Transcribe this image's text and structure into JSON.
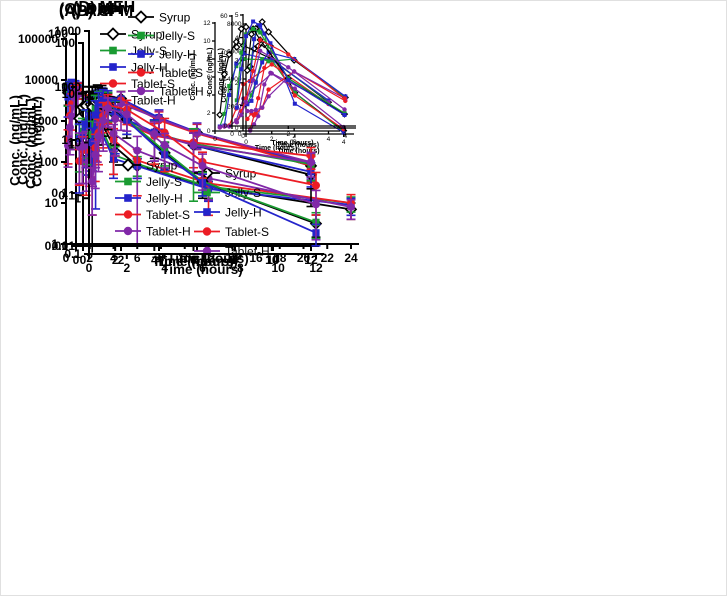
{
  "figure": {
    "background": "#ffffff",
    "border_color": "#e0e0e0"
  },
  "legend_series": [
    {
      "label": "Syrup",
      "color": "#000000",
      "marker": "diamond-open"
    },
    {
      "label": "Jelly-S",
      "color": "#1A9B32",
      "marker": "square"
    },
    {
      "label": "Jelly-H",
      "color": "#2424CB",
      "marker": "square"
    },
    {
      "label": "Tablet-S",
      "color": "#EC1C24",
      "marker": "circle"
    },
    {
      "label": "Tablet-H",
      "color": "#8128A8",
      "marker": "circle"
    }
  ],
  "chart_data": [
    {
      "id": "A",
      "type": "line",
      "title": "(A) AAP",
      "xlabel": "Time (hours)",
      "ylabel": "Conc. (ng/mL)",
      "yscale": "log",
      "ylim": [
        1,
        100000
      ],
      "yticks": [
        "1",
        "10",
        "100",
        "1000",
        "10000",
        "100000"
      ],
      "xlim": [
        0,
        24
      ],
      "xticks": [
        0,
        2,
        4,
        6,
        8,
        10,
        12,
        14,
        16,
        18,
        20,
        22,
        24
      ],
      "x": [
        0.17,
        0.33,
        0.5,
        0.75,
        1,
        2,
        4,
        6,
        12,
        24
      ],
      "series": [
        {
          "name": "Syrup",
          "values": [
            4900,
            6200,
            6400,
            6500,
            6400,
            3000,
            250,
            80,
            25,
            7
          ],
          "errors": [
            2500,
            2000,
            2000,
            2000,
            2000,
            1200,
            150,
            40,
            12,
            3
          ]
        },
        {
          "name": "Jelly-S",
          "values": [
            4700,
            6900,
            7600,
            7300,
            5500,
            3000,
            150,
            90,
            25,
            10
          ],
          "errors": [
            2400,
            2200,
            2300,
            2300,
            2000,
            1300,
            100,
            45,
            12,
            4
          ]
        },
        {
          "name": "Jelly-H",
          "values": [
            3850,
            6900,
            7900,
            7300,
            6600,
            2200,
            120,
            80,
            22,
            9
          ],
          "errors": [
            2600,
            2300,
            2400,
            2300,
            2100,
            1100,
            80,
            40,
            11,
            4
          ]
        },
        {
          "name": "Tablet-S",
          "values": [
            350,
            1350,
            2600,
            4800,
            5900,
            2800,
            350,
            110,
            30,
            10
          ],
          "errors": [
            260,
            1100,
            2000,
            2400,
            2500,
            1500,
            300,
            95,
            25,
            6
          ]
        },
        {
          "name": "Tablet-H",
          "values": [
            250,
            700,
            1300,
            3600,
            4450,
            3300,
            500,
            190,
            40,
            8
          ],
          "errors": [
            175,
            550,
            1100,
            2200,
            2300,
            1700,
            320,
            230,
            28,
            4
          ]
        }
      ],
      "inset": {
        "xlabel": "Time (hours)",
        "ylabel": "Conc. (ng/mL)",
        "ylim": [
          0,
          8000
        ],
        "yticks": [
          0,
          2000,
          4000,
          6000,
          8000
        ],
        "xlim": [
          0,
          4.3
        ],
        "xticks": [
          0,
          2,
          4
        ],
        "points": 7
      }
    },
    {
      "id": "B",
      "type": "line",
      "title": "(B) CPM",
      "xlabel": "Time (hours)",
      "ylabel": "Conc. (ng/mL)",
      "yscale": "log",
      "ylim": [
        0.01,
        100
      ],
      "yticks": [
        "0.01",
        "0.1",
        "1",
        "10",
        "100"
      ],
      "xlim": [
        0,
        12
      ],
      "xticks": [
        0,
        2,
        4,
        6,
        8,
        10,
        12
      ],
      "x": [
        0.17,
        0.33,
        0.5,
        0.75,
        1,
        2,
        4,
        6,
        12
      ],
      "series": [
        {
          "name": "Syrup",
          "values": [
            1.8,
            6.3,
            8.5,
            9.9,
            9.5,
            8.0,
            3.2,
            1.7,
            0.38
          ],
          "errors": [
            1.2,
            4.5,
            5.5,
            5.0,
            5.0,
            3.0,
            1.3,
            0.85,
            0.32
          ]
        },
        {
          "name": "Jelly-S",
          "values": [
            0.5,
            1.9,
            5.0,
            7.2,
            8.0,
            7.9,
            3.3,
            1.7,
            0.4
          ],
          "errors": [
            0.25,
            1.3,
            3.5,
            4.0,
            4.0,
            3.2,
            1.4,
            0.9,
            0.2
          ]
        },
        {
          "name": "Jelly-H",
          "values": [
            0.5,
            0.6,
            4.0,
            7.5,
            8.6,
            7.9,
            3.4,
            1.75,
            0.42
          ],
          "errors": [
            0.25,
            0.3,
            3.7,
            4.2,
            4.4,
            3.1,
            1.4,
            0.9,
            0.2
          ]
        },
        {
          "name": "Tablet-S",
          "values": [
            0.4,
            0.5,
            0.6,
            2.5,
            5.2,
            7.4,
            3.0,
            1.65,
            0.38
          ],
          "errors": [
            0.3,
            0.35,
            0.45,
            1.9,
            3.5,
            3.6,
            1.4,
            0.85,
            0.2
          ]
        },
        {
          "name": "Tablet-H",
          "values": [
            0.4,
            0.5,
            0.5,
            1.2,
            3.6,
            6.4,
            3.2,
            1.7,
            0.45
          ],
          "errors": [
            0.28,
            0.33,
            0.35,
            0.75,
            2.6,
            4.5,
            1.4,
            0.9,
            0.25
          ]
        }
      ],
      "inset": {
        "xlabel": "Time (hours)",
        "ylabel": "Conc. (ng/mL)",
        "ylim": [
          0,
          12
        ],
        "yticks": [
          0,
          2,
          4,
          6,
          8,
          10,
          12
        ],
        "xlim": [
          0,
          4.3
        ],
        "xticks": [
          0,
          2,
          4
        ],
        "points": 7
      }
    },
    {
      "id": "C",
      "type": "line",
      "title": "(C) DMH",
      "xlabel": "Time (hours)",
      "ylabel": "Conc. (ng/mL)",
      "yscale": "log",
      "ylim": [
        0.01,
        100
      ],
      "yticks": [
        "0.01",
        "0.1",
        "1",
        "10",
        "100"
      ],
      "xlim": [
        0,
        12
      ],
      "xticks": [
        0,
        2,
        4,
        6,
        8,
        10,
        12
      ],
      "x": [
        0.17,
        0.33,
        0.5,
        0.75,
        1,
        2,
        4,
        6,
        12
      ],
      "series": [
        {
          "name": "Syrup",
          "values": [
            2.55,
            4.15,
            4.4,
            4.7,
            4.25,
            3.0,
            1.35,
            0.8,
            0.22
          ],
          "errors": [
            1.8,
            3.5,
            3.8,
            3.6,
            3.2,
            2.2,
            0.9,
            0.55,
            0.1
          ]
        },
        {
          "name": "Jelly-S",
          "values": [
            1.1,
            1.45,
            2.05,
            3.05,
            2.95,
            3.05,
            1.35,
            0.85,
            0.35
          ],
          "errors": [
            0.85,
            1.1,
            1.6,
            2.4,
            2.3,
            2.3,
            1.0,
            0.78,
            0.18
          ]
        },
        {
          "name": "Jelly-H",
          "values": [
            1.05,
            1.2,
            2.0,
            2.9,
            3.35,
            3.05,
            1.4,
            0.8,
            0.25
          ],
          "errors": [
            0.95,
            1.05,
            1.7,
            2.3,
            3.3,
            2.5,
            1.0,
            0.55,
            0.12
          ]
        },
        {
          "name": "Tablet-S",
          "values": [
            0.4,
            0.65,
            0.65,
            0.9,
            1.7,
            2.5,
            1.2,
            0.9,
            0.5
          ],
          "errors": [
            0.26,
            0.5,
            0.5,
            0.7,
            1.3,
            2.0,
            0.85,
            0.6,
            0.22
          ]
        },
        {
          "name": "Tablet-H",
          "values": [
            0.75,
            0.75,
            0.8,
            0.9,
            1.4,
            2.5,
            1.3,
            0.8,
            0.38
          ],
          "errors": [
            0.6,
            0.6,
            0.65,
            0.7,
            1.1,
            2.0,
            0.9,
            0.55,
            0.18
          ]
        }
      ],
      "inset": {
        "xlabel": "Time (hours)",
        "ylabel": "Conc. (ng/mL)",
        "ylim": [
          0,
          5
        ],
        "yticks": [
          0,
          1,
          2,
          3,
          4,
          5
        ],
        "xlim": [
          0,
          4.3
        ],
        "xticks": [
          0,
          2,
          4
        ],
        "points": 7
      }
    },
    {
      "id": "D",
      "type": "line",
      "title": "(D) MEH",
      "xlabel": "Time (hours)",
      "ylabel": "Conc. (ng/mL)",
      "yscale": "log",
      "ylim": [
        0.1,
        1000
      ],
      "yticks": [
        "0.1",
        "1",
        "10",
        "100",
        "1000"
      ],
      "xlim": [
        0,
        12
      ],
      "xticks": [
        0,
        2,
        4,
        6,
        8,
        10,
        12
      ],
      "x": [
        0.17,
        0.33,
        0.5,
        0.75,
        1,
        2,
        4,
        6,
        12
      ],
      "series": [
        {
          "name": "Syrup",
          "values": [
            43,
            53,
            54,
            53,
            47,
            26,
            6.5,
            2.0,
            0.35
          ],
          "errors": [
            55,
            45,
            45,
            40,
            30,
            14,
            3.5,
            1.0,
            0.15
          ]
        },
        {
          "name": "Jelly-S",
          "values": [
            14,
            40,
            50,
            53,
            51,
            26,
            7.0,
            2.0,
            0.37
          ],
          "errors": [
            10,
            30,
            32,
            30,
            28,
            12,
            3.2,
            0.9,
            0.18
          ]
        },
        {
          "name": "Jelly-H",
          "values": [
            10,
            31,
            49,
            57,
            55,
            25,
            6.0,
            1.9,
            0.24
          ],
          "errors": [
            8,
            25,
            30,
            32,
            30,
            11,
            2.8,
            0.8,
            0.1
          ]
        },
        {
          "name": "Tablet-S",
          "values": [
            2,
            8,
            15,
            30,
            47,
            39,
            15,
            4.5,
            1.7
          ],
          "errors": [
            1.5,
            6,
            11,
            22,
            25,
            18,
            12,
            2.2,
            1.2
          ]
        },
        {
          "name": "Tablet-H",
          "values": [
            2,
            6,
            13,
            25,
            41,
            32,
            9,
            3.8,
            0.78
          ],
          "errors": [
            1.5,
            4.5,
            10,
            18,
            22,
            16,
            5.5,
            2.4,
            0.6
          ]
        }
      ],
      "inset": {
        "xlabel": "Time (hours)",
        "ylabel": "Conc. (ng/mL)",
        "ylim": [
          0,
          60
        ],
        "yticks": [
          0,
          20,
          40,
          60
        ],
        "xlim": [
          0,
          4.3
        ],
        "xticks": [
          0,
          2,
          4
        ],
        "points": 7
      }
    }
  ]
}
